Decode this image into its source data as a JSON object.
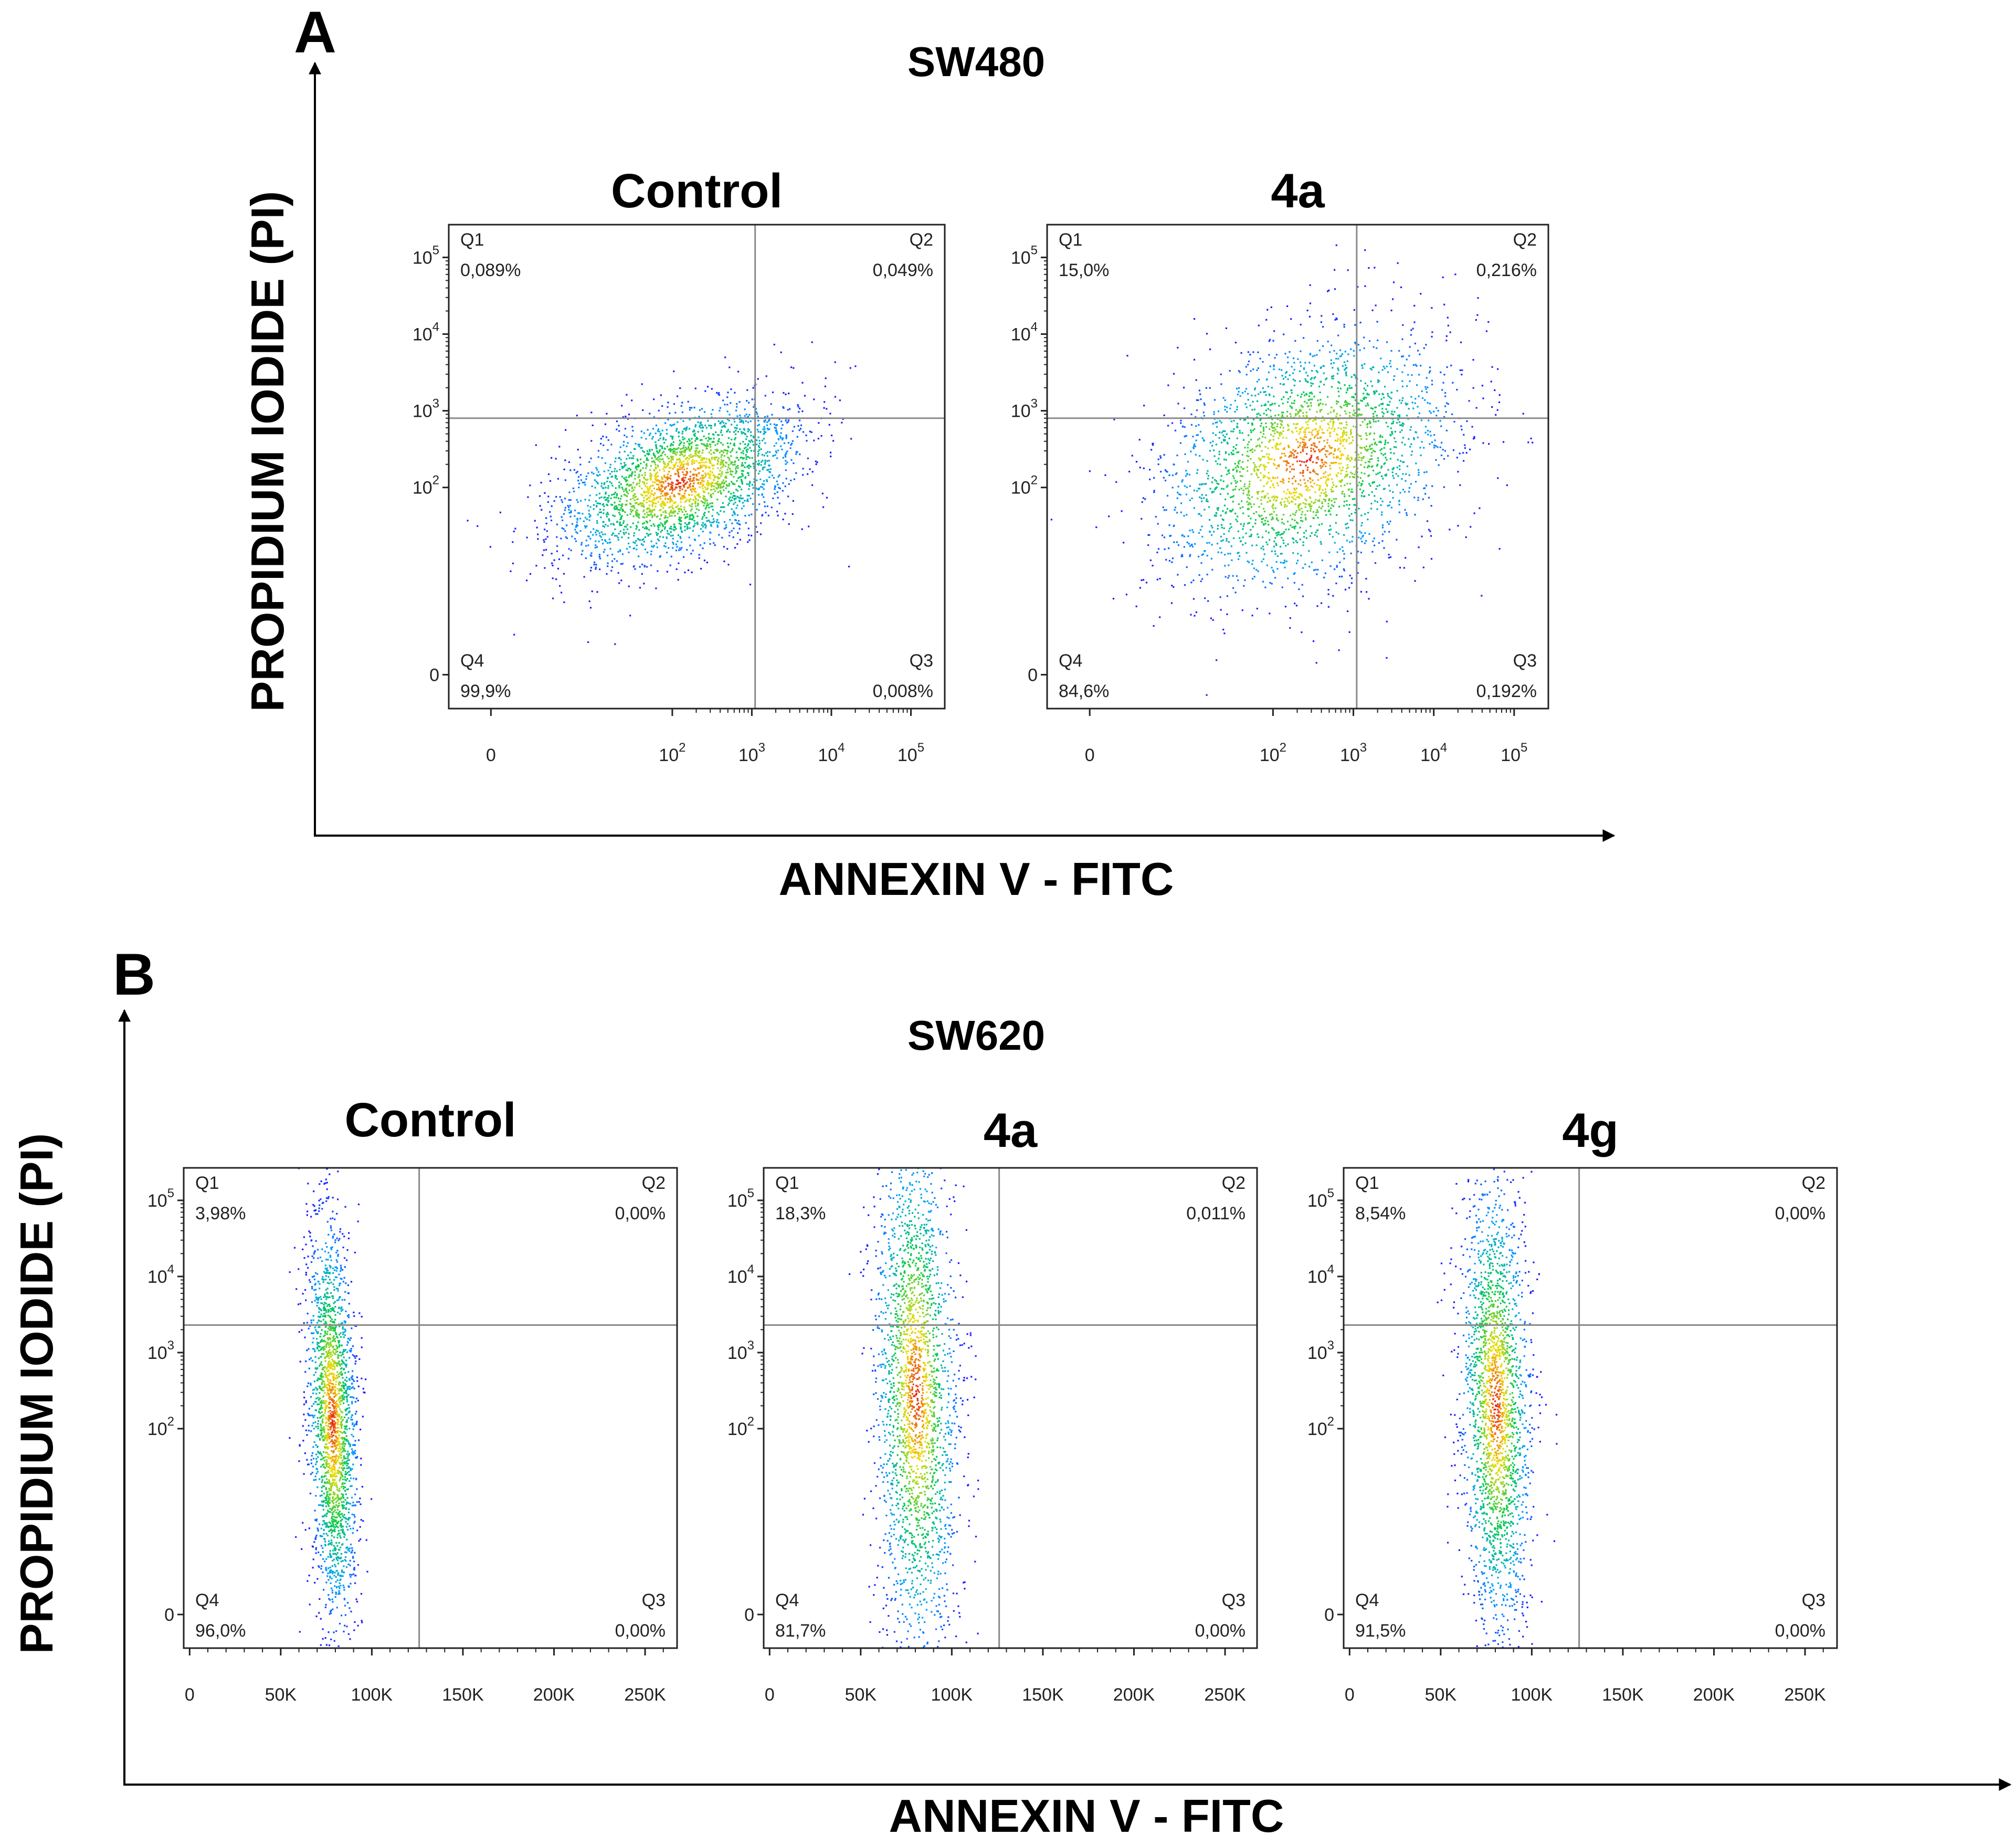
{
  "panels": [
    {
      "letter": "A",
      "cell_line": "SW480",
      "xlabel": "ANNEXIN V - FITC",
      "ylabel": "PROPIDIUM IODIDE (PI)"
    },
    {
      "letter": "B",
      "cell_line": "SW620",
      "xlabel": "ANNEXIN V - FITC",
      "ylabel": "PROPIDIUM IODIDE (PI)"
    }
  ],
  "chart_data": [
    {
      "type": "scatter",
      "panel": "A",
      "title": "Control",
      "x_scale": "log",
      "y_scale": "log",
      "x_ticks": [
        "0",
        "10^2",
        "10^3",
        "10^4",
        "10^5"
      ],
      "y_ticks": [
        "0",
        "10^2",
        "10^3",
        "10^4",
        "10^5"
      ],
      "quadrants": [
        {
          "name": "Q1",
          "percent": "0,089%"
        },
        {
          "name": "Q2",
          "percent": "0,049%"
        },
        {
          "name": "Q3",
          "percent": "0,008%"
        },
        {
          "name": "Q4",
          "percent": "99,9%"
        }
      ],
      "gate": {
        "x": 1100,
        "y": 800
      },
      "population": {
        "center_x": 120,
        "center_y": 120
      }
    },
    {
      "type": "scatter",
      "panel": "A",
      "title": "4a",
      "x_scale": "log",
      "y_scale": "log",
      "x_ticks": [
        "0",
        "10^2",
        "10^3",
        "10^4",
        "10^5"
      ],
      "y_ticks": [
        "0",
        "10^2",
        "10^3",
        "10^4",
        "10^5"
      ],
      "quadrants": [
        {
          "name": "Q1",
          "percent": "15,0%"
        },
        {
          "name": "Q2",
          "percent": "0,216%"
        },
        {
          "name": "Q3",
          "percent": "0,192%"
        },
        {
          "name": "Q4",
          "percent": "84,6%"
        }
      ],
      "gate": {
        "x": 1100,
        "y": 800
      },
      "population": {
        "center_x": 250,
        "center_y": 230
      }
    },
    {
      "type": "scatter",
      "panel": "B",
      "title": "Control",
      "x_scale": "linear",
      "y_scale": "log",
      "x_ticks": [
        "0",
        "50K",
        "100K",
        "150K",
        "200K",
        "250K"
      ],
      "y_ticks": [
        "0",
        "10^2",
        "10^3",
        "10^4",
        "10^5"
      ],
      "quadrants": [
        {
          "name": "Q1",
          "percent": "3,98%"
        },
        {
          "name": "Q2",
          "percent": "0,00%"
        },
        {
          "name": "Q3",
          "percent": "0,00%"
        },
        {
          "name": "Q4",
          "percent": "96,0%"
        }
      ],
      "gate": {
        "x": 126000,
        "y": 2300
      },
      "population": {
        "center_x": 78000,
        "center_y": 130
      }
    },
    {
      "type": "scatter",
      "panel": "B",
      "title": "4a",
      "x_scale": "linear",
      "y_scale": "log",
      "x_ticks": [
        "0",
        "50K",
        "100K",
        "150K",
        "200K",
        "250K"
      ],
      "y_ticks": [
        "0",
        "10^2",
        "10^3",
        "10^4",
        "10^5"
      ],
      "quadrants": [
        {
          "name": "Q1",
          "percent": "18,3%"
        },
        {
          "name": "Q2",
          "percent": "0,011%"
        },
        {
          "name": "Q3",
          "percent": "0,00%"
        },
        {
          "name": "Q4",
          "percent": "81,7%"
        }
      ],
      "gate": {
        "x": 126000,
        "y": 2300
      },
      "population": {
        "center_x": 80000,
        "center_y": 300
      }
    },
    {
      "type": "scatter",
      "panel": "B",
      "title": "4g",
      "x_scale": "linear",
      "y_scale": "log",
      "x_ticks": [
        "0",
        "50K",
        "100K",
        "150K",
        "200K",
        "250K"
      ],
      "y_ticks": [
        "0",
        "10^2",
        "10^3",
        "10^4",
        "10^5"
      ],
      "quadrants": [
        {
          "name": "Q1",
          "percent": "8,54%"
        },
        {
          "name": "Q2",
          "percent": "0,00%"
        },
        {
          "name": "Q3",
          "percent": "0,00%"
        },
        {
          "name": "Q4",
          "percent": "91,5%"
        }
      ],
      "gate": {
        "x": 126000,
        "y": 2300
      },
      "population": {
        "center_x": 80000,
        "center_y": 200
      }
    }
  ]
}
